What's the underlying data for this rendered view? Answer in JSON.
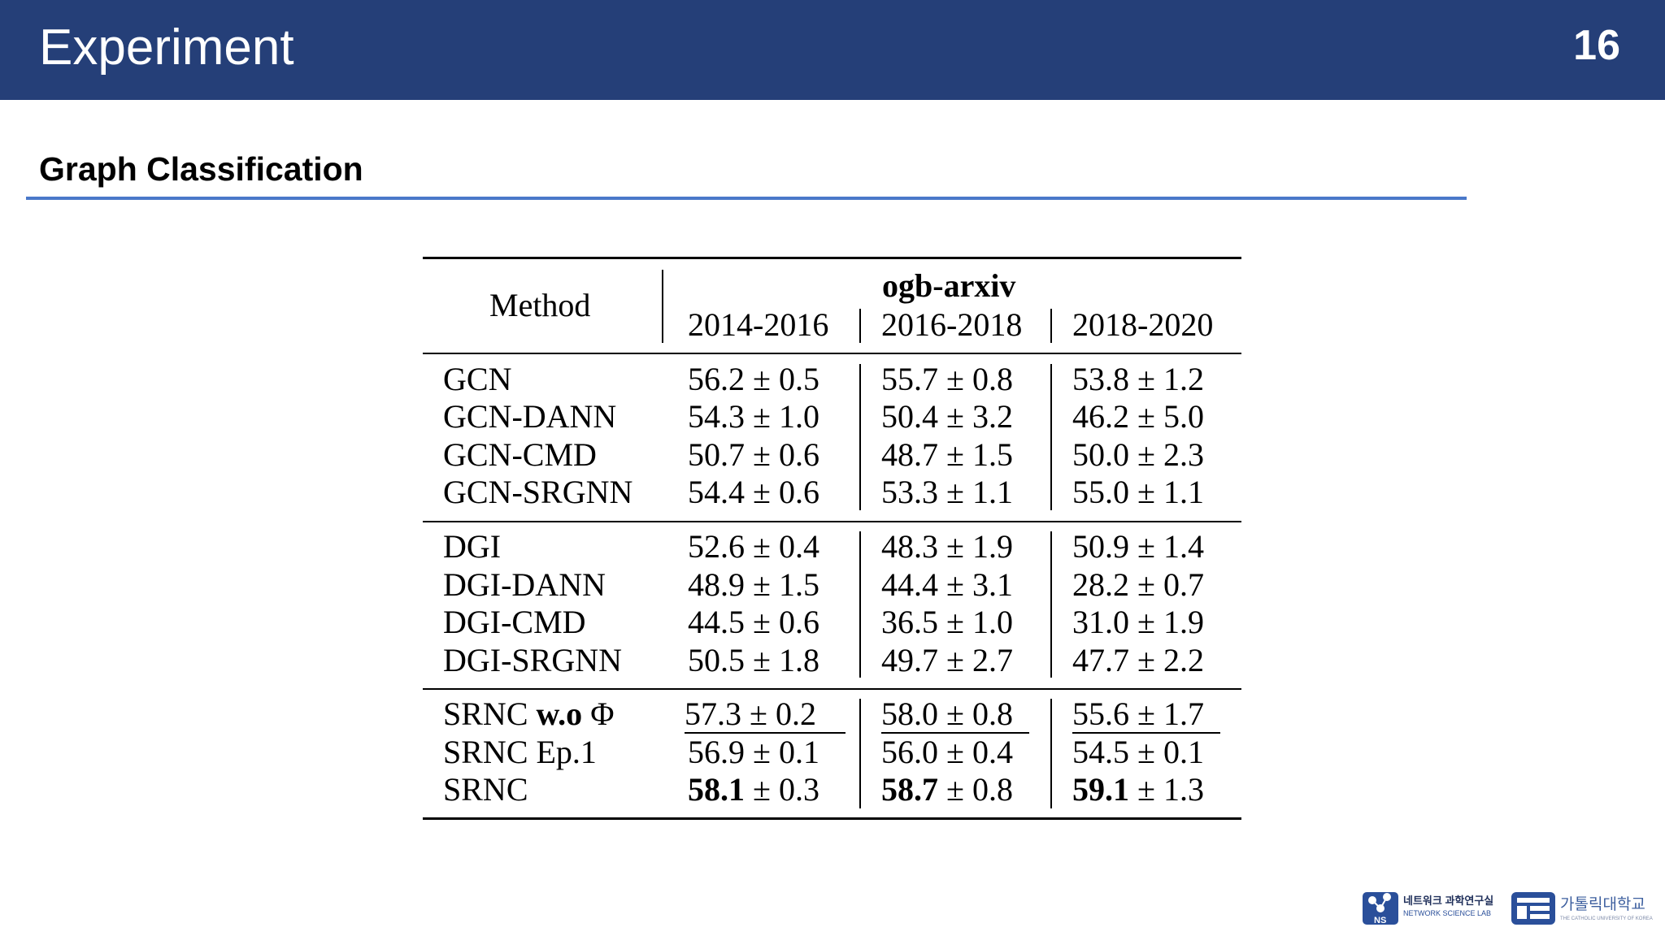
{
  "header": {
    "title": "Experiment",
    "page_number": "16"
  },
  "section": {
    "title": "Graph Classification"
  },
  "table": {
    "method_header": "Method",
    "dataset_header": "ogb-arxiv",
    "period_headers": [
      "2014-2016",
      "2016-2018",
      "2018-2020"
    ],
    "groups": [
      [
        {
          "method": "GCN",
          "values": [
            "56.2 ± 0.5",
            "55.7 ± 0.8",
            "53.8 ± 1.2"
          ]
        },
        {
          "method": "GCN-DANN",
          "values": [
            "54.3 ± 1.0",
            "50.4 ± 3.2",
            "46.2 ± 5.0"
          ]
        },
        {
          "method": "GCN-CMD",
          "values": [
            "50.7 ± 0.6",
            "48.7 ± 1.5",
            "50.0 ± 2.3"
          ]
        },
        {
          "method": "GCN-SRGNN",
          "values": [
            "54.4 ± 0.6",
            "53.3 ± 1.1",
            "55.0 ± 1.1"
          ]
        }
      ],
      [
        {
          "method": "DGI",
          "values": [
            "52.6 ± 0.4",
            "48.3 ± 1.9",
            "50.9 ± 1.4"
          ]
        },
        {
          "method": "DGI-DANN",
          "values": [
            "48.9 ± 1.5",
            "44.4 ± 3.1",
            "28.2 ± 0.7"
          ]
        },
        {
          "method": "DGI-CMD",
          "values": [
            "44.5 ± 0.6",
            "36.5 ± 1.0",
            "31.0 ± 1.9"
          ]
        },
        {
          "method": "DGI-SRGNN",
          "values": [
            "50.5 ± 1.8",
            "49.7 ± 2.7",
            "47.7 ± 2.2"
          ]
        }
      ],
      [
        {
          "method_prefix": "SRNC ",
          "method_bold": "w.o",
          "method_suffix": " Φ",
          "values": [
            "57.3 ± 0.2",
            "58.0 ± 0.8",
            "55.6 ± 1.7"
          ]
        },
        {
          "method": "SRNC Ep.1",
          "values": [
            "56.9 ± 0.1",
            "56.0 ± 0.4",
            "54.5 ± 0.1"
          ]
        },
        {
          "method": "SRNC",
          "values_bold": [
            "58.1",
            "58.7",
            "59.1"
          ],
          "values_rest": [
            " ± 0.3",
            " ± 0.8",
            " ± 1.3"
          ]
        }
      ]
    ]
  },
  "logos": {
    "lab_badge": "NS",
    "lab_name_ko": "네트워크 과학연구실",
    "lab_name_en": "NETWORK SCIENCE LAB",
    "univ_name_ko": "가톨릭대학교",
    "univ_name_en": "THE CATHOLIC UNIVERSITY OF KOREA"
  },
  "colors": {
    "header_bg": "#253f78",
    "rule": "#4a78c9"
  }
}
